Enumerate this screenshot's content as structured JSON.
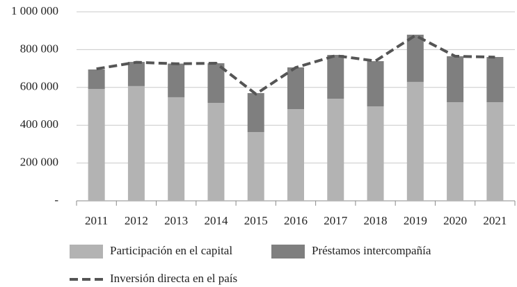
{
  "chart_data": {
    "type": "bar",
    "categories": [
      "2011",
      "2012",
      "2013",
      "2014",
      "2015",
      "2016",
      "2017",
      "2018",
      "2019",
      "2020",
      "2021"
    ],
    "stacked": true,
    "series": [
      {
        "name": "Participación en el capital",
        "color": "#b3b3b3",
        "values": [
          592000,
          607000,
          548000,
          518000,
          364000,
          485000,
          540000,
          500000,
          629000,
          522000,
          522000
        ]
      },
      {
        "name": "Préstamos intercompañía",
        "color": "#7f7f7f",
        "values": [
          103000,
          128000,
          178000,
          210000,
          206000,
          221000,
          232000,
          239000,
          250000,
          243000,
          239000
        ]
      },
      {
        "name": "Inversión directa en el país",
        "type": "line",
        "color": "#555555",
        "dashed": true,
        "values": [
          698000,
          733000,
          725000,
          728000,
          565000,
          705000,
          768000,
          740000,
          875000,
          765000,
          760000
        ]
      }
    ],
    "ylim": [
      0,
      1000000
    ],
    "yticks": [
      {
        "value": 0,
        "label": "-"
      },
      {
        "value": 200000,
        "label": "200 000"
      },
      {
        "value": 400000,
        "label": "400 000"
      },
      {
        "value": 600000,
        "label": "600 000"
      },
      {
        "value": 800000,
        "label": "800 000"
      },
      {
        "value": 1000000,
        "label": "1 000 000"
      }
    ],
    "grid": true,
    "legend": "bottom"
  }
}
